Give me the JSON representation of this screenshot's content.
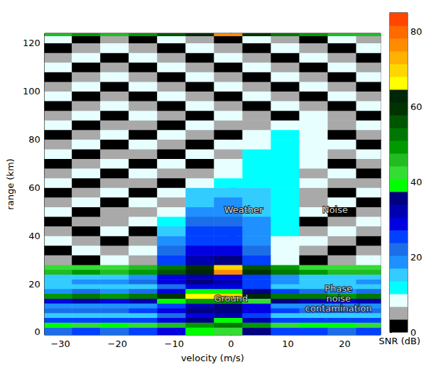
{
  "chart_data": {
    "type": "heatmap",
    "x_label": "velocity (m/s)",
    "y_label": "range (km)",
    "xlim": [
      -32.8,
      26.3
    ],
    "xticks": [
      {
        "value": -30,
        "label": "−30"
      },
      {
        "value": -20,
        "label": "−20"
      },
      {
        "value": -10,
        "label": "−10"
      },
      0,
      10,
      20
    ],
    "ylim": [
      -1.2,
      124
    ],
    "yticks": [
      0,
      20,
      40,
      60,
      80,
      100,
      120
    ],
    "velocity_edges": [
      -32.8,
      -28,
      -23,
      -18,
      -13,
      -8,
      -3,
      2,
      7,
      12,
      17,
      22,
      26.3
    ],
    "range_edges": [
      -1.2,
      2,
      4,
      6,
      8,
      10,
      12,
      14,
      16,
      18,
      20,
      22,
      24,
      26,
      28,
      32,
      36,
      40,
      44,
      48,
      52,
      56,
      60,
      64,
      68,
      72,
      76,
      80,
      84,
      88,
      92,
      96,
      100,
      104,
      108,
      112,
      116,
      120,
      123,
      124
    ],
    "snr": [
      [
        22,
        24,
        22,
        25,
        30,
        40,
        42,
        35,
        26,
        24,
        22,
        24
      ],
      [
        40,
        42,
        40,
        42,
        45,
        50,
        52,
        48,
        42,
        40,
        40,
        42
      ],
      [
        25,
        26,
        24,
        26,
        30,
        36,
        38,
        32,
        26,
        25,
        24,
        25
      ],
      [
        14,
        15,
        14,
        16,
        22,
        30,
        32,
        26,
        16,
        15,
        14,
        15
      ],
      [
        22,
        23,
        22,
        24,
        28,
        34,
        35,
        30,
        24,
        22,
        22,
        23
      ],
      [
        18,
        19,
        18,
        20,
        26,
        32,
        34,
        28,
        20,
        18,
        18,
        19
      ],
      [
        30,
        32,
        30,
        33,
        40,
        48,
        50,
        44,
        34,
        31,
        30,
        32
      ],
      [
        50,
        52,
        50,
        53,
        58,
        66,
        70,
        64,
        54,
        51,
        50,
        52
      ],
      [
        20,
        21,
        20,
        22,
        30,
        38,
        40,
        34,
        24,
        21,
        20,
        21
      ],
      [
        14,
        15,
        14,
        16,
        22,
        28,
        28,
        24,
        16,
        14,
        14,
        15
      ],
      [
        16,
        17,
        18,
        22,
        30,
        34,
        32,
        26,
        18,
        16,
        16,
        17
      ],
      [
        15,
        16,
        16,
        20,
        28,
        32,
        30,
        24,
        17,
        15,
        15,
        16
      ],
      [
        46,
        48,
        47,
        50,
        56,
        62,
        76,
        60,
        52,
        48,
        46,
        47
      ],
      [
        42,
        44,
        43,
        46,
        52,
        58,
        70,
        56,
        48,
        44,
        42,
        43
      ],
      [
        5,
        2,
        8,
        5,
        26,
        32,
        34,
        24,
        8,
        2,
        5,
        8
      ],
      [
        2,
        8,
        5,
        8,
        22,
        30,
        30,
        22,
        10,
        5,
        2,
        5
      ],
      [
        8,
        5,
        2,
        5,
        18,
        26,
        26,
        20,
        10,
        8,
        5,
        2
      ],
      [
        5,
        2,
        8,
        2,
        14,
        24,
        24,
        18,
        12,
        5,
        8,
        5
      ],
      [
        2,
        5,
        5,
        8,
        12,
        22,
        22,
        18,
        12,
        2,
        5,
        8
      ],
      [
        8,
        2,
        5,
        5,
        10,
        18,
        20,
        16,
        12,
        8,
        2,
        5
      ],
      [
        5,
        8,
        2,
        8,
        5,
        16,
        18,
        16,
        12,
        5,
        8,
        2
      ],
      [
        2,
        5,
        8,
        2,
        8,
        14,
        16,
        15,
        12,
        5,
        2,
        8
      ],
      [
        8,
        2,
        5,
        5,
        2,
        8,
        12,
        13,
        12,
        8,
        5,
        5
      ],
      [
        5,
        8,
        2,
        8,
        5,
        5,
        10,
        12,
        12,
        5,
        8,
        2
      ],
      [
        2,
        5,
        8,
        2,
        8,
        2,
        8,
        12,
        12,
        8,
        2,
        5
      ],
      [
        8,
        2,
        5,
        5,
        2,
        8,
        5,
        11,
        12,
        10,
        5,
        8
      ],
      [
        5,
        8,
        2,
        8,
        5,
        2,
        8,
        10,
        11,
        10,
        8,
        2
      ],
      [
        2,
        5,
        8,
        2,
        8,
        5,
        2,
        8,
        11,
        10,
        2,
        5
      ],
      [
        8,
        2,
        5,
        5,
        2,
        8,
        5,
        5,
        10,
        8,
        5,
        8
      ],
      [
        5,
        8,
        2,
        8,
        5,
        2,
        8,
        5,
        2,
        8,
        5,
        2
      ],
      [
        2,
        5,
        8,
        5,
        2,
        8,
        5,
        2,
        8,
        5,
        2,
        8
      ],
      [
        8,
        2,
        5,
        2,
        8,
        5,
        2,
        8,
        5,
        2,
        8,
        5
      ],
      [
        5,
        8,
        2,
        8,
        5,
        2,
        8,
        5,
        2,
        8,
        5,
        2
      ],
      [
        2,
        5,
        8,
        5,
        2,
        8,
        5,
        2,
        8,
        5,
        2,
        8
      ],
      [
        8,
        2,
        5,
        2,
        8,
        5,
        2,
        8,
        5,
        2,
        8,
        5
      ],
      [
        5,
        8,
        2,
        8,
        5,
        2,
        8,
        5,
        2,
        8,
        5,
        2
      ],
      [
        2,
        5,
        8,
        5,
        2,
        8,
        5,
        2,
        8,
        5,
        2,
        8
      ],
      [
        8,
        2,
        5,
        2,
        8,
        5,
        2,
        8,
        5,
        2,
        8,
        5
      ],
      [
        45,
        48,
        46,
        50,
        55,
        62,
        78,
        60,
        52,
        48,
        46,
        47
      ]
    ],
    "colorbar": {
      "label": "SNR (dB)",
      "range": [
        0,
        85
      ],
      "ticks": [
        0,
        20,
        40,
        60,
        80
      ]
    },
    "annotations": [
      {
        "text": "Weather",
        "x": 2.2,
        "y": 50.9
      },
      {
        "text": "Noise",
        "x": 18.3,
        "y": 50.9
      },
      {
        "text": "Ground",
        "x": 0,
        "y": 14.1
      },
      {
        "text": "Phase noise contamination",
        "x": 18.9,
        "y": 14.1
      }
    ]
  }
}
